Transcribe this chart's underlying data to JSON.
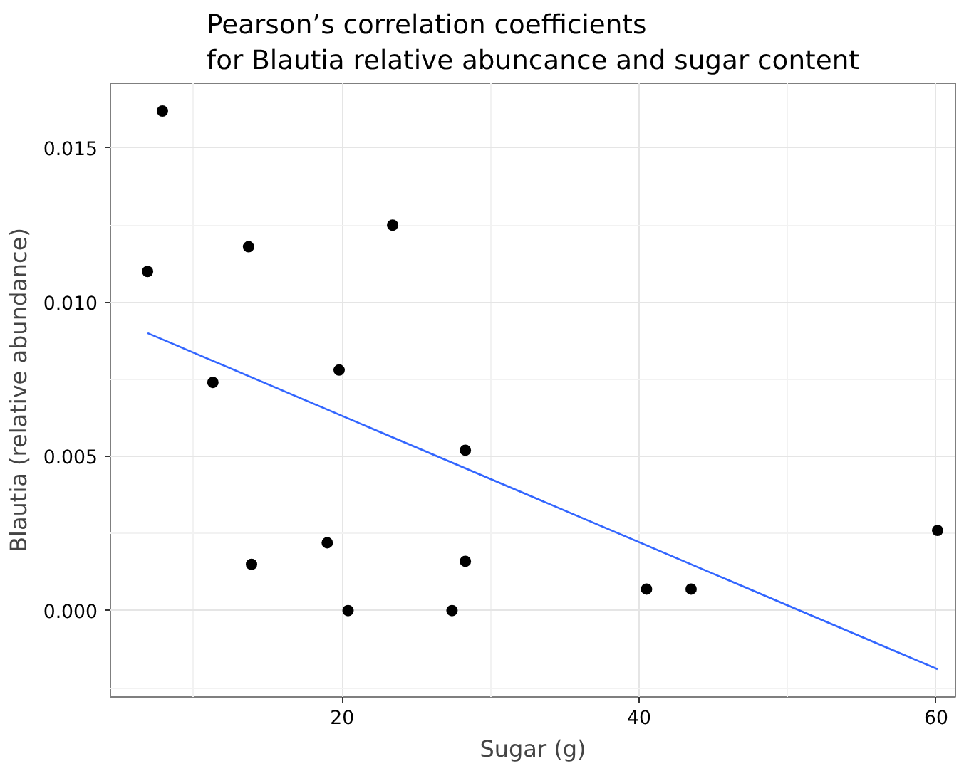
{
  "chart_data": {
    "type": "scatter",
    "title": "Pearson’s correlation coefficients\nfor Blautia relative abuncance and sugar content",
    "xlabel": "Sugar (g)",
    "ylabel": "Blautia (relative abundance)",
    "xlim": [
      4.4,
      61.3
    ],
    "ylim": [
      -0.0028,
      0.0171
    ],
    "xticks": [
      20,
      40,
      60
    ],
    "yticks": [
      {
        "value": 0,
        "label": "0.000"
      },
      {
        "value": 0.005,
        "label": "0.005"
      },
      {
        "value": 0.01,
        "label": "0.010"
      },
      {
        "value": 0.015,
        "label": "0.015"
      }
    ],
    "grid": true,
    "series": [
      {
        "marker": "circle",
        "color": "#000000",
        "x": [
          7.9,
          6.9,
          13.7,
          23.4,
          11.3,
          19.8,
          28.3,
          19.0,
          13.9,
          28.3,
          20.4,
          27.4,
          40.5,
          43.5,
          60.1
        ],
        "values": [
          0.0162,
          0.011,
          0.0118,
          0.0125,
          0.0074,
          0.0078,
          0.0052,
          0.0022,
          0.0015,
          0.0016,
          0.0,
          0.0,
          0.0007,
          0.0007,
          0.0026
        ]
      },
      {
        "type": "line",
        "color": "#3366ff",
        "x": [
          6.9,
          60.1
        ],
        "values": [
          0.009,
          -0.0019
        ]
      }
    ]
  }
}
